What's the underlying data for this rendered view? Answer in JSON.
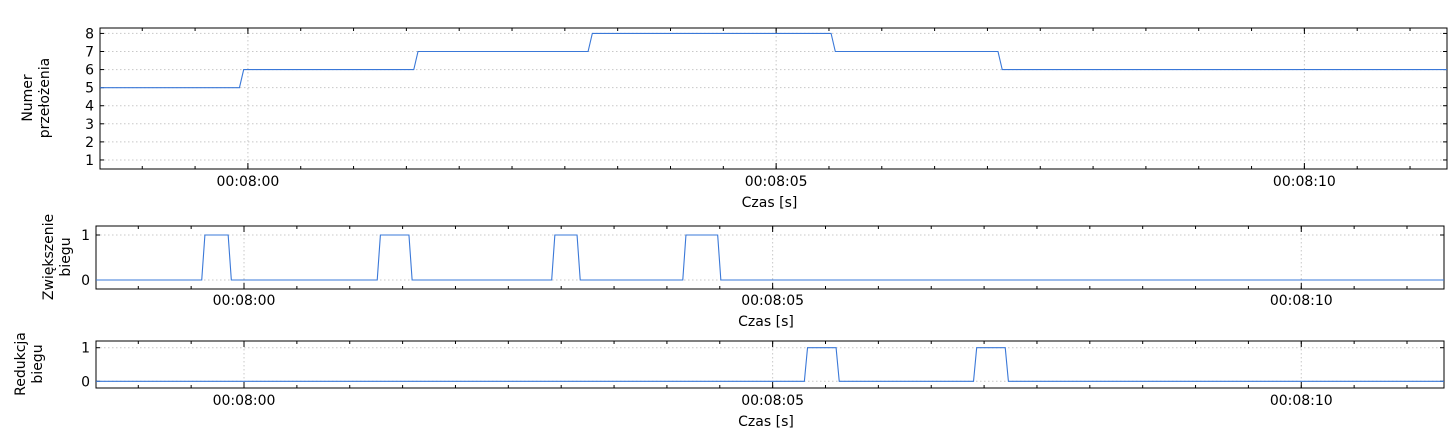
{
  "chart_data": [
    {
      "type": "line",
      "step": true,
      "ylabel": [
        "Numer",
        "przełożenia"
      ],
      "xlabel": "Czas [s]",
      "xlim": [
        478.6,
        491.35
      ],
      "ylim": [
        0.5,
        8.3
      ],
      "yticks": [
        1,
        2,
        3,
        4,
        5,
        6,
        7,
        8
      ],
      "xticks": [
        480,
        485,
        490
      ],
      "xtick_labels": [
        "00:08:00",
        "00:08:05",
        "00:08:10"
      ],
      "grid": true,
      "color": "#3a78d8",
      "series": [
        {
          "name": "Numer przełożenia",
          "x": [
            478.6,
            479.92,
            479.96,
            481.57,
            481.61,
            483.22,
            483.26,
            485.52,
            485.56,
            487.1,
            487.14,
            491.35
          ],
          "y": [
            5,
            5,
            6,
            6,
            7,
            7,
            8,
            8,
            7,
            7,
            6,
            6
          ]
        }
      ]
    },
    {
      "type": "line",
      "ylabel": [
        "Zwiększenie",
        "biegu"
      ],
      "xlabel": "Czas [s]",
      "xlim": [
        478.6,
        491.35
      ],
      "ylim": [
        -0.2,
        1.2
      ],
      "yticks": [
        0,
        1
      ],
      "xticks": [
        480,
        485,
        490
      ],
      "xtick_labels": [
        "00:08:00",
        "00:08:05",
        "00:08:10"
      ],
      "grid": true,
      "color": "#3a78d8",
      "series": [
        {
          "name": "Zwiększenie biegu",
          "x": [
            478.6,
            479.6,
            479.63,
            479.85,
            479.88,
            481.26,
            481.29,
            481.56,
            481.59,
            482.91,
            482.94,
            483.15,
            483.18,
            484.15,
            484.18,
            484.48,
            484.51,
            491.35
          ],
          "y": [
            0,
            0,
            1,
            1,
            0,
            0,
            1,
            1,
            0,
            0,
            1,
            1,
            0,
            0,
            1,
            1,
            0,
            0
          ]
        }
      ]
    },
    {
      "type": "line",
      "ylabel": [
        "Redukcja",
        "biegu"
      ],
      "xlabel": "Czas [s]",
      "xlim": [
        478.6,
        491.35
      ],
      "ylim": [
        -0.2,
        1.2
      ],
      "yticks": [
        0,
        1
      ],
      "xticks": [
        480,
        485,
        490
      ],
      "xtick_labels": [
        "00:08:00",
        "00:08:05",
        "00:08:10"
      ],
      "grid": true,
      "color": "#3a78d8",
      "series": [
        {
          "name": "Redukcja biegu",
          "x": [
            478.6,
            485.3,
            485.33,
            485.6,
            485.63,
            486.9,
            486.93,
            487.2,
            487.23,
            491.35
          ],
          "y": [
            0,
            0,
            1,
            1,
            0,
            0,
            1,
            1,
            0,
            0
          ]
        }
      ]
    }
  ]
}
